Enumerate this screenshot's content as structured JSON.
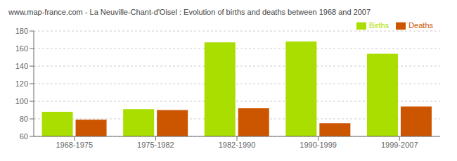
{
  "chart_data": {
    "type": "bar",
    "title": "www.map-france.com - La Neuville-Chant-d'Oisel : Evolution of births and deaths between 1968 and 2007",
    "categories": [
      "1968-1975",
      "1975-1982",
      "1982-1990",
      "1990-1999",
      "1999-2007"
    ],
    "series": [
      {
        "name": "Births",
        "color": "#aadd00",
        "values": [
          88,
          91,
          167,
          168,
          154
        ]
      },
      {
        "name": "Deaths",
        "color": "#cc5500",
        "values": [
          79,
          90,
          92,
          75,
          94
        ]
      }
    ],
    "ylim": [
      60,
      180
    ],
    "yticks": [
      60,
      80,
      100,
      120,
      140,
      160,
      180
    ],
    "grid": true,
    "legend": "upper right"
  }
}
